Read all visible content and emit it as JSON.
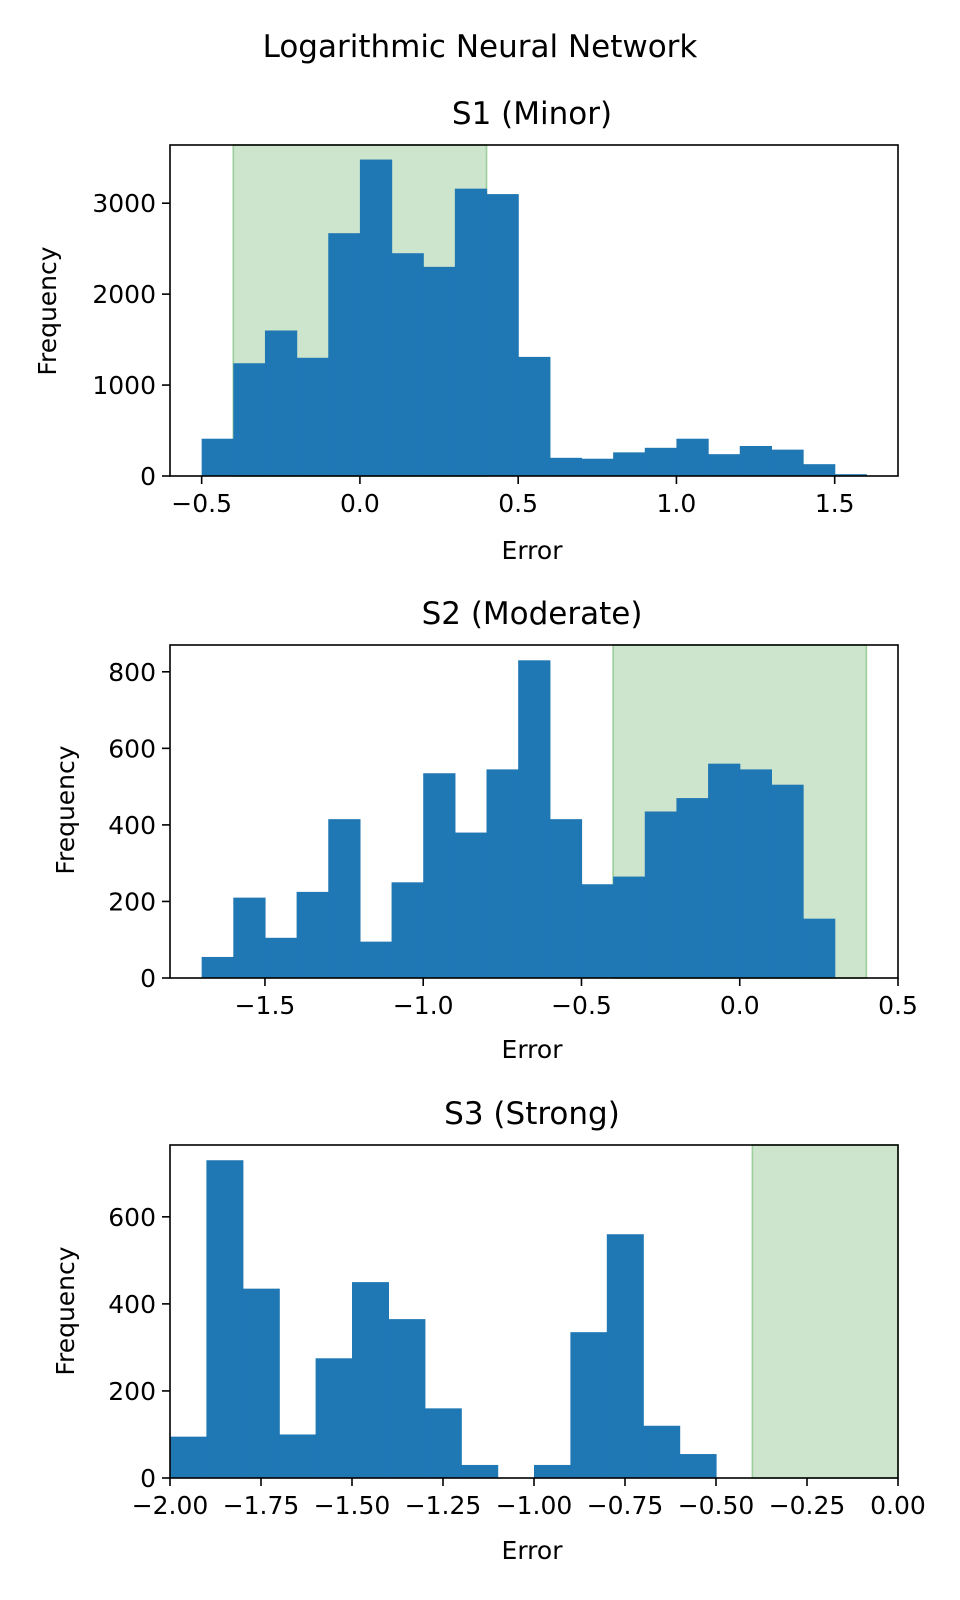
{
  "figure": {
    "suptitle": "Logarithmic Neural Network"
  },
  "colors": {
    "bar": "#1f77b4",
    "band_fill": "#cce5cc",
    "band_edge": "#9ccf9c"
  },
  "chart_data": [
    {
      "type": "bar",
      "title": "S1 (Minor)",
      "xlabel": "Error",
      "ylabel": "Frequency",
      "xlim": [
        -0.6,
        1.7
      ],
      "ylim": [
        0,
        3640
      ],
      "xticks": [
        -0.5,
        0.0,
        0.5,
        1.0,
        1.5
      ],
      "xtick_labels": [
        "−0.5",
        "0.0",
        "0.5",
        "1.0",
        "1.5"
      ],
      "yticks": [
        0,
        1000,
        2000,
        3000
      ],
      "ytick_labels": [
        "0",
        "1000",
        "2000",
        "3000"
      ],
      "band": [
        -0.4,
        0.4
      ],
      "bins": [
        -0.5,
        -0.4,
        -0.3,
        -0.2,
        -0.1,
        0.0,
        0.1,
        0.2,
        0.3,
        0.4,
        0.5,
        0.6,
        0.7,
        0.8,
        0.9,
        1.0,
        1.1,
        1.2,
        1.3,
        1.4,
        1.5,
        1.6
      ],
      "counts": [
        410,
        1240,
        1600,
        1300,
        2670,
        3480,
        2450,
        2300,
        3160,
        3100,
        1310,
        200,
        190,
        260,
        310,
        410,
        240,
        330,
        290,
        130,
        20
      ]
    },
    {
      "type": "bar",
      "title": "S2 (Moderate)",
      "xlabel": "Error",
      "ylabel": "Frequency",
      "xlim": [
        -1.8,
        0.5
      ],
      "ylim": [
        0,
        870
      ],
      "xticks": [
        -1.5,
        -1.0,
        -0.5,
        0.0,
        0.5
      ],
      "xtick_labels": [
        "−1.5",
        "−1.0",
        "−0.5",
        "0.0",
        "0.5"
      ],
      "yticks": [
        0,
        200,
        400,
        600,
        800
      ],
      "ytick_labels": [
        "0",
        "200",
        "400",
        "600",
        "800"
      ],
      "band": [
        -0.4,
        0.4
      ],
      "bins": [
        -1.7,
        -1.6,
        -1.5,
        -1.4,
        -1.3,
        -1.2,
        -1.1,
        -1.0,
        -0.9,
        -0.8,
        -0.7,
        -0.6,
        -0.5,
        -0.4,
        -0.3,
        -0.2,
        -0.1,
        0.0,
        0.1,
        0.2,
        0.3
      ],
      "counts": [
        55,
        210,
        105,
        225,
        415,
        95,
        250,
        535,
        380,
        545,
        830,
        415,
        245,
        265,
        435,
        470,
        560,
        545,
        505,
        155
      ]
    },
    {
      "type": "bar",
      "title": "S3 (Strong)",
      "xlabel": "Error",
      "ylabel": "Frequency",
      "xlim": [
        -2.0,
        0.0
      ],
      "ylim": [
        0,
        765
      ],
      "xticks": [
        -2.0,
        -1.75,
        -1.5,
        -1.25,
        -1.0,
        -0.75,
        -0.5,
        -0.25,
        0.0
      ],
      "xtick_labels": [
        "−2.00",
        "−1.75",
        "−1.50",
        "−1.25",
        "−1.00",
        "−0.75",
        "−0.50",
        "−0.25",
        "0.00"
      ],
      "yticks": [
        0,
        200,
        400,
        600
      ],
      "ytick_labels": [
        "0",
        "200",
        "400",
        "600"
      ],
      "band": [
        -0.4,
        0.0
      ],
      "bins": [
        -2.0,
        -1.9,
        -1.8,
        -1.7,
        -1.6,
        -1.5,
        -1.4,
        -1.3,
        -1.2,
        -1.1,
        -1.0,
        -0.9,
        -0.8,
        -0.7,
        -0.6,
        -0.5
      ],
      "counts": [
        95,
        730,
        435,
        100,
        275,
        450,
        365,
        160,
        30,
        0,
        30,
        335,
        560,
        120,
        55
      ]
    }
  ]
}
